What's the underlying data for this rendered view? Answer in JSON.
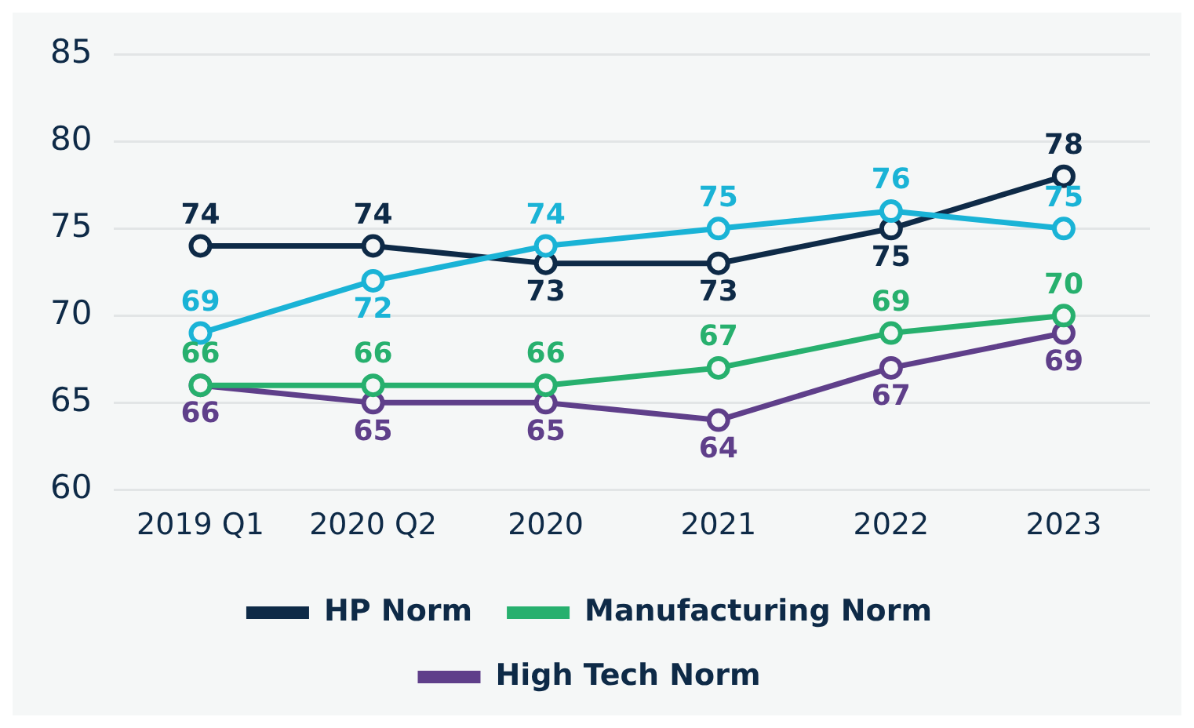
{
  "chart_data": {
    "type": "line",
    "categories": [
      "2019 Q1",
      "2020 Q2",
      "2020",
      "2021",
      "2022",
      "2023"
    ],
    "series": [
      {
        "color": "#1ab3d6",
        "values": [
          69,
          72,
          74,
          75,
          76,
          75
        ]
      },
      {
        "name": "HP Norm",
        "color": "#0e2a47",
        "values": [
          74,
          74,
          73,
          73,
          75,
          78
        ]
      },
      {
        "name": "Manufacturing Norm",
        "color": "#27b06e",
        "values": [
          66,
          66,
          66,
          67,
          69,
          70
        ]
      },
      {
        "name": "High Tech Norm",
        "color": "#5f3f8a",
        "values": [
          66,
          65,
          65,
          64,
          67,
          69
        ]
      }
    ],
    "data_labels": true,
    "ylim": [
      60,
      85
    ],
    "yticks": [
      60,
      65,
      70,
      75,
      80,
      85
    ],
    "grid": "y",
    "legend": "bottom",
    "marker": "circle",
    "line_style": "solid"
  }
}
